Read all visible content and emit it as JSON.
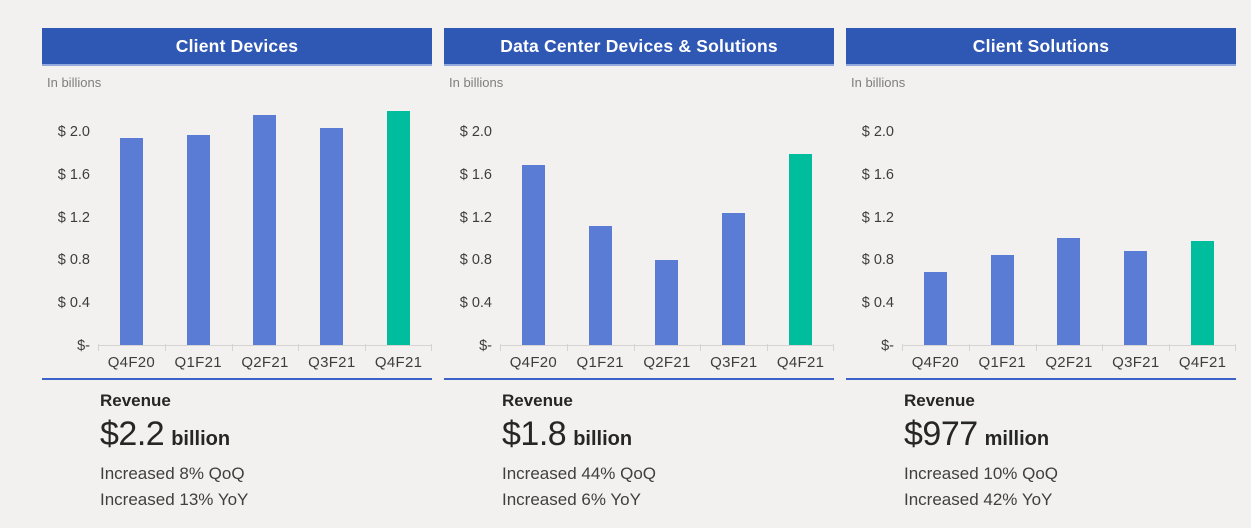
{
  "colors": {
    "page_bg": "#f2f1f0",
    "banner_blue": "#2f57b4",
    "bar_blue": "#5a7cd4",
    "bar_green": "#00bd9d",
    "divider_blue": "#3b62c8",
    "axis_line": "#d6d4d2"
  },
  "chart_data": [
    {
      "type": "bar",
      "title": "Client Devices",
      "units_label": "In billions",
      "categories": [
        "Q4F20",
        "Q1F21",
        "Q2F21",
        "Q3F21",
        "Q4F21"
      ],
      "values": [
        1.94,
        1.97,
        2.16,
        2.04,
        2.2
      ],
      "highlight_index": 4,
      "ylim": [
        0,
        2.28
      ],
      "yticks": [
        {
          "label": "$-",
          "value": 0
        },
        {
          "label": "$ 0.4",
          "value": 0.4
        },
        {
          "label": "$ 0.8",
          "value": 0.8
        },
        {
          "label": "$ 1.2",
          "value": 1.2
        },
        {
          "label": "$ 1.6",
          "value": 1.6
        },
        {
          "label": "$ 2.0",
          "value": 2.0
        }
      ],
      "footer": {
        "label": "Revenue",
        "amount": "$2.2",
        "unit": "billion",
        "qoq": "Increased 8% QoQ",
        "yoy": "Increased 13% YoY"
      }
    },
    {
      "type": "bar",
      "title": "Data Center Devices & Solutions",
      "units_label": "In billions",
      "categories": [
        "Q4F20",
        "Q1F21",
        "Q2F21",
        "Q3F21",
        "Q4F21"
      ],
      "values": [
        1.69,
        1.12,
        0.8,
        1.24,
        1.79
      ],
      "highlight_index": 4,
      "ylim": [
        0,
        2.28
      ],
      "yticks": [
        {
          "label": "$-",
          "value": 0
        },
        {
          "label": "$ 0.4",
          "value": 0.4
        },
        {
          "label": "$ 0.8",
          "value": 0.8
        },
        {
          "label": "$ 1.2",
          "value": 1.2
        },
        {
          "label": "$ 1.6",
          "value": 1.6
        },
        {
          "label": "$ 2.0",
          "value": 2.0
        }
      ],
      "footer": {
        "label": "Revenue",
        "amount": "$1.8",
        "unit": "billion",
        "qoq": "Increased 44% QoQ",
        "yoy": "Increased 6% YoY"
      }
    },
    {
      "type": "bar",
      "title": "Client Solutions",
      "units_label": "In billions",
      "categories": [
        "Q4F20",
        "Q1F21",
        "Q2F21",
        "Q3F21",
        "Q4F21"
      ],
      "values": [
        0.69,
        0.85,
        1.01,
        0.89,
        0.98
      ],
      "highlight_index": 4,
      "ylim": [
        0,
        2.28
      ],
      "yticks": [
        {
          "label": "$-",
          "value": 0
        },
        {
          "label": "$ 0.4",
          "value": 0.4
        },
        {
          "label": "$ 0.8",
          "value": 0.8
        },
        {
          "label": "$ 1.2",
          "value": 1.2
        },
        {
          "label": "$ 1.6",
          "value": 1.6
        },
        {
          "label": "$ 2.0",
          "value": 2.0
        }
      ],
      "footer": {
        "label": "Revenue",
        "amount": "$977",
        "unit": "million",
        "qoq": "Increased 10% QoQ",
        "yoy": "Increased 42% YoY"
      }
    }
  ]
}
